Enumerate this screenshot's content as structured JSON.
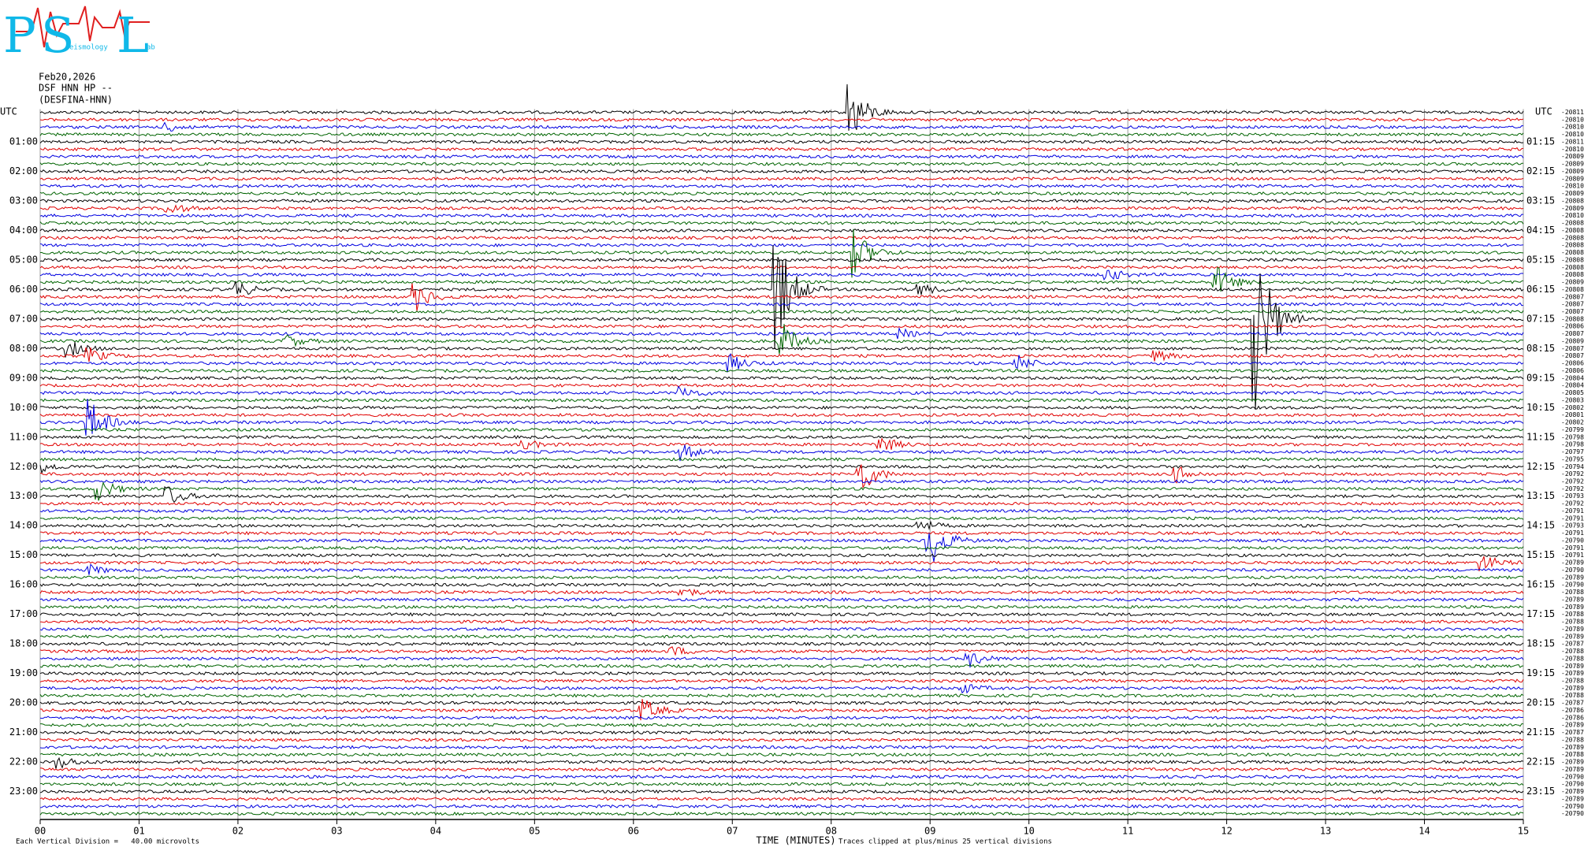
{
  "logo": {
    "letters": [
      "P",
      "S",
      "L"
    ],
    "words": [
      "eismology",
      "ab"
    ]
  },
  "header": {
    "date": "Feb20,2026",
    "station": "DSF HNN HP --",
    "channel": "(DESFINA-HNN)"
  },
  "left_header": "UTC",
  "right_header": "UTC",
  "left_times": [
    "01:00",
    "02:00",
    "03:00",
    "04:00",
    "05:00",
    "06:00",
    "07:00",
    "08:00",
    "09:00",
    "10:00",
    "11:00",
    "12:00",
    "13:00",
    "14:00",
    "15:00",
    "16:00",
    "17:00",
    "18:00",
    "19:00",
    "20:00",
    "21:00",
    "22:00",
    "23:00"
  ],
  "right_times": [
    "01:15",
    "02:15",
    "03:15",
    "04:15",
    "05:15",
    "06:15",
    "07:15",
    "08:15",
    "09:15",
    "10:15",
    "11:15",
    "12:15",
    "13:15",
    "14:15",
    "15:15",
    "16:15",
    "17:15",
    "18:15",
    "19:15",
    "20:15",
    "21:15",
    "22:15",
    "23:15"
  ],
  "offsets": [
    -20811,
    -20810,
    -20810,
    -20810,
    -20811,
    -20810,
    -20809,
    -20809,
    -20809,
    -20809,
    -20810,
    -20809,
    -20808,
    -20809,
    -20810,
    -20808,
    -20808,
    -20808,
    -20808,
    -20808,
    -20808,
    -20808,
    -20808,
    -20809,
    -20808,
    -20807,
    -20807,
    -20807,
    -20808,
    -20806,
    -20807,
    -20809,
    -20807,
    -20807,
    -20806,
    -20806,
    -20804,
    -20804,
    -20805,
    -20803,
    -20802,
    -20801,
    -20802,
    -20799,
    -20798,
    -20798,
    -20797,
    -20795,
    -20794,
    -20792,
    -20792,
    -20792,
    -20793,
    -20792,
    -20791,
    -20791,
    -20793,
    -20791,
    -20790,
    -20791,
    -20791,
    -20789,
    -20790,
    -20789,
    -20790,
    -20788,
    -20789,
    -20789,
    -20788,
    -20788,
    -20789,
    -20789,
    -20787,
    -20788,
    -20788,
    -20789,
    -20789,
    -20788,
    -20789,
    -20788,
    -20787,
    -20786,
    -20786,
    -20789,
    -20787,
    -20788,
    -20789,
    -20788,
    -20789,
    -20789,
    -20790,
    -20790,
    -20789,
    -20789,
    -20790,
    -20790
  ],
  "x_ticks": [
    "00",
    "01",
    "02",
    "03",
    "04",
    "05",
    "06",
    "07",
    "08",
    "09",
    "10",
    "11",
    "12",
    "13",
    "14",
    "15"
  ],
  "x_title": "TIME (MINUTES)",
  "scale_note": "Each Vertical Division =   40.00 microvolts",
  "clip_note": "Traces clipped at plus/minus 25 vertical divisions"
}
